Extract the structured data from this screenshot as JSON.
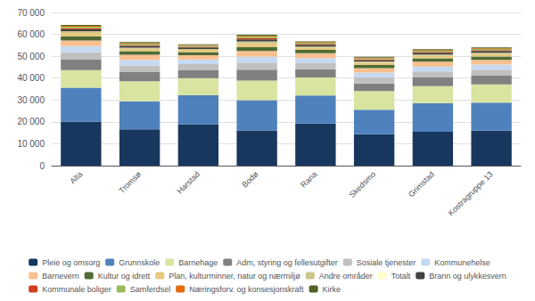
{
  "chart_data": {
    "type": "bar",
    "stacked": true,
    "grid": true,
    "legend": "bottom",
    "categories": [
      "Alta",
      "Tromsø",
      "Harstad",
      "Bodø",
      "Rana",
      "Skedsmo",
      "Grimstad",
      "Kostragruppe 13"
    ],
    "series": [
      {
        "name": "Pleie og omsorg",
        "color": "#17375e",
        "values": [
          20107,
          16556,
          18975,
          16063,
          19256,
          14375,
          15480,
          16000
        ]
      },
      {
        "name": "Grunnskole",
        "color": "#4f81bd",
        "values": [
          15500,
          12800,
          13200,
          13800,
          12800,
          11200,
          13000,
          12800
        ]
      },
      {
        "name": "Barnehage",
        "color": "#d8e4a0",
        "values": [
          8000,
          9200,
          7800,
          9000,
          8200,
          8500,
          7800,
          8300
        ]
      },
      {
        "name": "Adm, styring og fellesutgifter",
        "color": "#808080",
        "values": [
          5000,
          4200,
          3800,
          5000,
          3800,
          3500,
          4000,
          4000
        ]
      },
      {
        "name": "Sosiale tjenester",
        "color": "#c0c0c0",
        "values": [
          3200,
          3000,
          2600,
          3200,
          2800,
          2800,
          2800,
          2800
        ]
      },
      {
        "name": "Kommunehelse",
        "color": "#c5d9f1",
        "values": [
          2800,
          2600,
          2200,
          2800,
          2300,
          2200,
          2200,
          2300
        ]
      },
      {
        "name": "Barnevern",
        "color": "#fac090",
        "values": [
          2600,
          2300,
          1900,
          2500,
          2200,
          2000,
          2200,
          2100
        ]
      },
      {
        "name": "Kultur og idrett",
        "color": "#4e6b35",
        "values": [
          1800,
          1600,
          1400,
          1800,
          1600,
          1400,
          1600,
          1600
        ]
      },
      {
        "name": "Plan, kulturminner, natur og nærmiljø",
        "color": "#e6c97e",
        "values": [
          1600,
          1200,
          1000,
          1700,
          1100,
          1000,
          1200,
          1200
        ]
      },
      {
        "name": "Andre områder",
        "color": "#ccc48a",
        "values": [
          800,
          500,
          400,
          900,
          400,
          600,
          500,
          500
        ]
      },
      {
        "name": "Totalt",
        "color": "#ffffcc",
        "values": [
          0,
          0,
          0,
          0,
          0,
          0,
          0,
          0
        ]
      },
      {
        "name": "Brann og ulykkesvern",
        "color": "#404040",
        "values": [
          900,
          800,
          750,
          900,
          800,
          700,
          800,
          800
        ]
      },
      {
        "name": "Kommunale boliger",
        "color": "#d04020",
        "values": [
          500,
          400,
          350,
          500,
          400,
          350,
          400,
          400
        ]
      },
      {
        "name": "Samferdsel",
        "color": "#9bbb59",
        "values": [
          700,
          600,
          500,
          700,
          500,
          450,
          550,
          550
        ]
      },
      {
        "name": "Næringsforv. og konsesjonskraft",
        "color": "#e26b0a",
        "values": [
          400,
          350,
          250,
          500,
          300,
          300,
          300,
          300
        ]
      },
      {
        "name": "Kirke",
        "color": "#4f6228",
        "values": [
          400,
          350,
          350,
          500,
          350,
          350,
          350,
          350
        ]
      }
    ],
    "ylim": [
      0,
      70000
    ],
    "yticks": [
      0,
      {
        "value": 10000,
        "label": "10 000"
      },
      {
        "value": 20000,
        "label": "20 000"
      },
      {
        "value": 30000,
        "label": "30 000"
      },
      {
        "value": 40000,
        "label": "40 000"
      },
      {
        "value": 50000,
        "label": "50 000"
      },
      {
        "value": 60000,
        "label": "60 000"
      },
      {
        "value": 70000,
        "label": "70 000"
      }
    ]
  }
}
